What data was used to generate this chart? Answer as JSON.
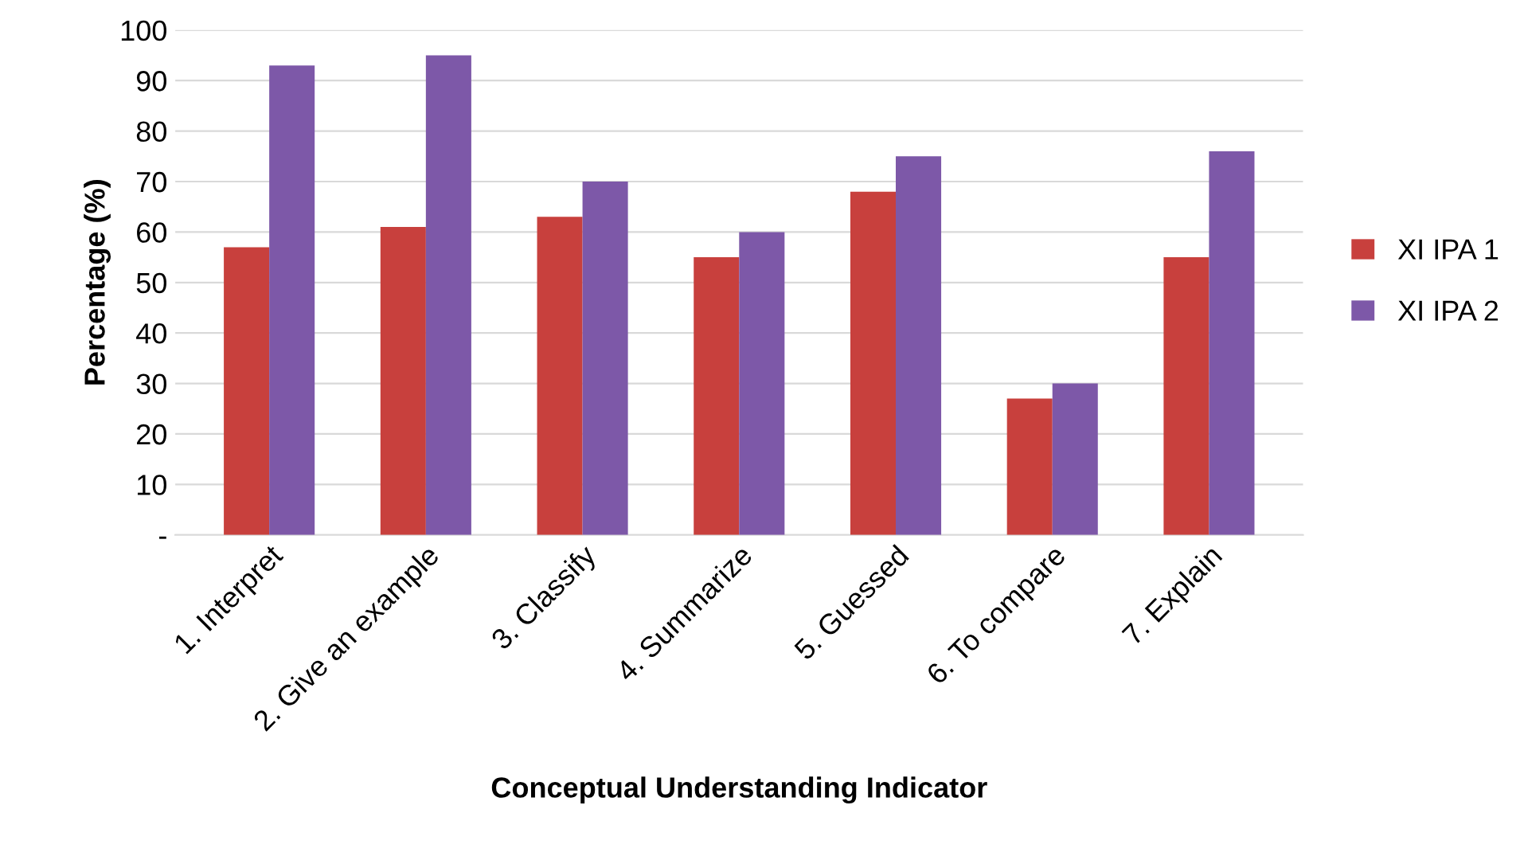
{
  "chart_data": {
    "type": "bar",
    "xlabel": "Conceptual Understanding Indicator",
    "ylabel": "Percentage (%)",
    "categories": [
      "1. Interpret",
      "2. Give an example",
      "3. Classify",
      "4. Summarize",
      "5. Guessed",
      "6. To compare",
      "7. Explain"
    ],
    "series": [
      {
        "name": "XI IPA 1",
        "color": "#c8403d",
        "values": [
          57,
          61,
          63,
          55,
          68,
          27,
          55
        ]
      },
      {
        "name": "XI IPA 2",
        "color": "#7d58a8",
        "values": [
          93,
          95,
          70,
          60,
          75,
          30,
          76
        ]
      }
    ],
    "ylim": [
      0,
      100
    ],
    "yticks": [
      {
        "value": 0,
        "label": "-"
      },
      10,
      20,
      30,
      40,
      50,
      60,
      70,
      80,
      90,
      100
    ],
    "grid": "y",
    "legend": "right"
  }
}
